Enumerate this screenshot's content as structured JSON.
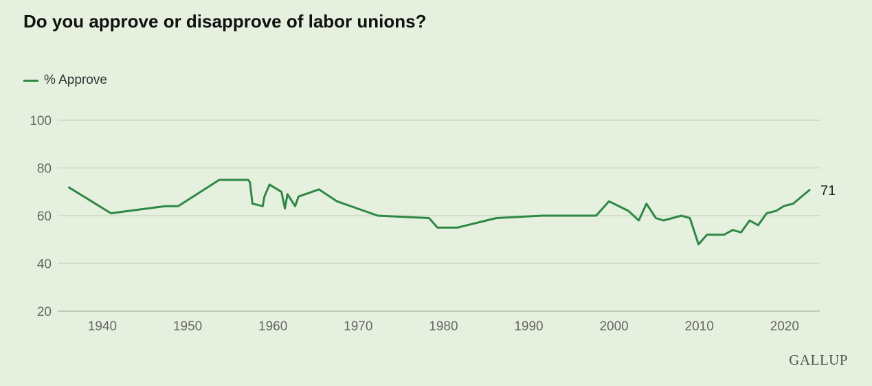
{
  "chart_data": {
    "type": "line",
    "title": "Do you approve or disapprove of labor unions?",
    "xlabel": "",
    "ylabel": "",
    "xlim": [
      1935.5,
      2024
    ],
    "ylim": [
      20,
      100
    ],
    "x_ticks": [
      "1940",
      "1950",
      "1960",
      "1970",
      "1980",
      "1990",
      "2000",
      "2010",
      "2020"
    ],
    "y_ticks": [
      "20",
      "40",
      "60",
      "80",
      "100"
    ],
    "grid": "horizontal",
    "legend_position": "top-left",
    "series": [
      {
        "name": "% Approve",
        "color": "#2f8745",
        "x": [
          1936,
          1941,
          1947.4,
          1948.9,
          1953.7,
          1957.1,
          1957.3,
          1957.6,
          1958.8,
          1959,
          1959.6,
          1961,
          1961.4,
          1961.7,
          1962.6,
          1963,
          1965.4,
          1967.5,
          1972.3,
          1978.3,
          1979.3,
          1981.6,
          1986.2,
          1991.6,
          1997.9,
          1999.4,
          2001.7,
          2002.9,
          2003.8,
          2004.9,
          2005.8,
          2007.9,
          2008.9,
          2009.9,
          2010.9,
          2012.9,
          2013.9,
          2014.9,
          2015.9,
          2016.9,
          2017.9,
          2019,
          2019.9,
          2021,
          2023
        ],
        "values": [
          72,
          61,
          64,
          64,
          75,
          75,
          74,
          65,
          64,
          68,
          73,
          70,
          63,
          69,
          64,
          68,
          71,
          66,
          60,
          59,
          55,
          55,
          59,
          60,
          60,
          66,
          62,
          58,
          65,
          59,
          58,
          60,
          59,
          48,
          52,
          52,
          54,
          53,
          58,
          56,
          61,
          62,
          64,
          65,
          71
        ]
      }
    ],
    "annotations": [
      {
        "text": "71"
      }
    ]
  },
  "legend": {
    "label": "% Approve"
  },
  "logo": "GALLUP"
}
